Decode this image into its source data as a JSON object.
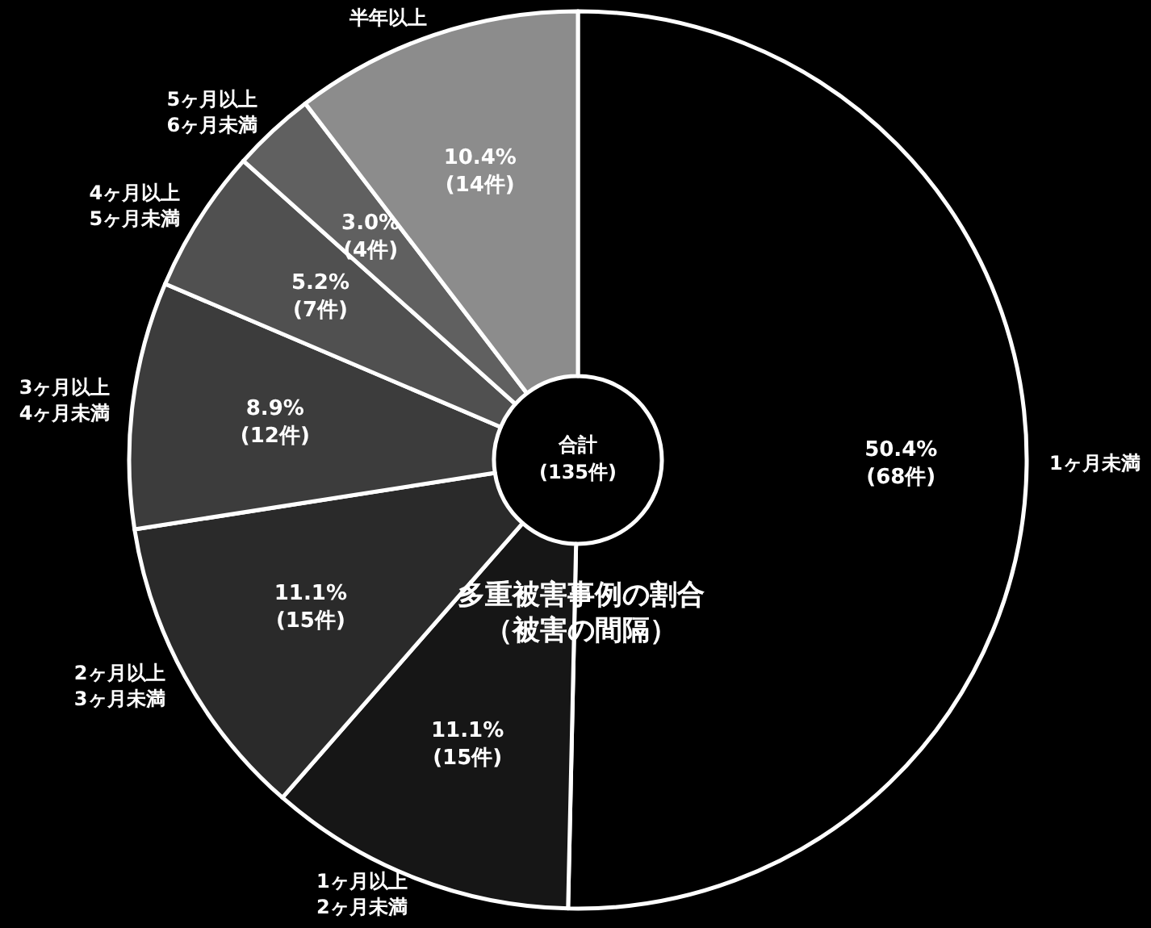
{
  "chart_data": {
    "type": "donut",
    "title": "多重被害事例の割合",
    "subtitle": "（被害の間隔）",
    "annotations": [
      "合計\n(135件)"
    ],
    "categories": [
      "1ヶ月未満",
      "1ヶ月以上\n2ヶ月未満",
      "2ヶ月以上\n3ヶ月未満",
      "3ヶ月以上\n4ヶ月未満",
      "4ヶ月以上\n5ヶ月未満",
      "5ヶ月以上\n6ヶ月未満",
      "半年以上"
    ],
    "values": [
      50.4,
      11.1,
      11.1,
      8.9,
      5.2,
      3.0,
      10.4
    ],
    "value_labels": [
      "50.4%\n(68件)",
      "11.1%\n(15件)",
      "11.1%\n(15件)",
      "8.9%\n(12件)",
      "5.2%\n(7件)",
      "3.0%\n(4件)",
      "10.4%\n(14件)"
    ],
    "colors": [
      "#000000",
      "#161616",
      "#2a2a2a",
      "#3c3c3c",
      "#505050",
      "#606060",
      "#8c8c8c"
    ]
  }
}
